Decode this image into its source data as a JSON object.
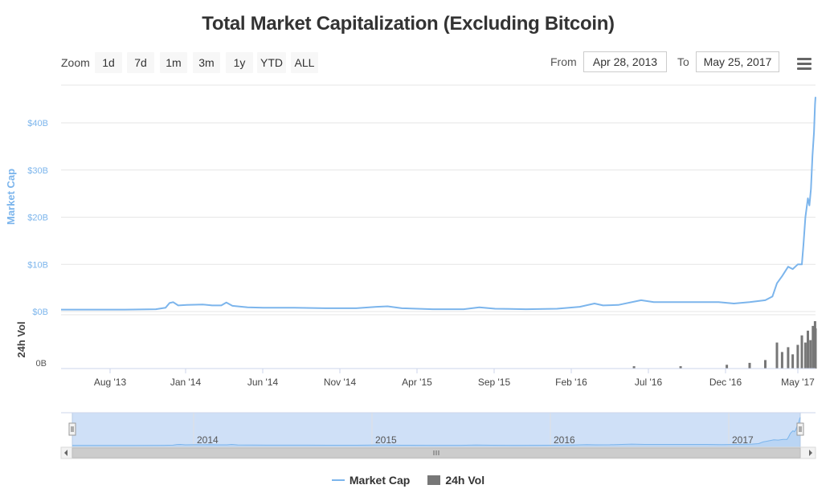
{
  "title": "Total Market Capitalization (Excluding Bitcoin)",
  "toolbar": {
    "zoom_label": "Zoom",
    "zoom_buttons": [
      "1d",
      "7d",
      "1m",
      "3m",
      "1y",
      "YTD",
      "ALL"
    ],
    "from_label": "From",
    "from_value": "Apr 28, 2013",
    "to_label": "To",
    "to_value": "May 25, 2017",
    "menu_icon": "hamburger-menu-icon"
  },
  "colors": {
    "market_cap": "#7cb5ec",
    "volume": "#777777",
    "navigator_fill": "#cfe0f7",
    "grid": "#e6e6e6",
    "axis_label": "#7cb5ec"
  },
  "chart_data": {
    "type": "line",
    "title": "Total Market Capitalization (Excluding Bitcoin)",
    "x_range": [
      "2013-04-28",
      "2017-05-25"
    ],
    "x_ticks": [
      "Aug '13",
      "Jan '14",
      "Jun '14",
      "Nov '14",
      "Apr '15",
      "Sep '15",
      "Feb '16",
      "Jul '16",
      "Dec '16",
      "May '17"
    ],
    "series": [
      {
        "name": "Market Cap",
        "axis_title": "Market Cap",
        "y_ticks": [
          "$0B",
          "$10B",
          "$20B",
          "$30B",
          "$40B"
        ],
        "ylim": [
          0,
          48
        ],
        "unit": "B USD",
        "points": [
          [
            "2013-04-28",
            0.4
          ],
          [
            "2013-07-01",
            0.4
          ],
          [
            "2013-09-01",
            0.4
          ],
          [
            "2013-11-01",
            0.5
          ],
          [
            "2013-11-20",
            0.8
          ],
          [
            "2013-11-28",
            1.8
          ],
          [
            "2013-12-05",
            2.0
          ],
          [
            "2013-12-15",
            1.3
          ],
          [
            "2014-01-01",
            1.4
          ],
          [
            "2014-02-01",
            1.5
          ],
          [
            "2014-02-20",
            1.3
          ],
          [
            "2014-03-10",
            1.3
          ],
          [
            "2014-03-20",
            1.9
          ],
          [
            "2014-04-01",
            1.2
          ],
          [
            "2014-05-01",
            0.9
          ],
          [
            "2014-06-01",
            0.8
          ],
          [
            "2014-08-01",
            0.8
          ],
          [
            "2014-10-01",
            0.7
          ],
          [
            "2014-12-01",
            0.7
          ],
          [
            "2015-01-10",
            1.0
          ],
          [
            "2015-02-01",
            1.1
          ],
          [
            "2015-03-01",
            0.7
          ],
          [
            "2015-05-01",
            0.5
          ],
          [
            "2015-07-01",
            0.5
          ],
          [
            "2015-08-01",
            0.9
          ],
          [
            "2015-09-01",
            0.6
          ],
          [
            "2015-11-01",
            0.5
          ],
          [
            "2016-01-01",
            0.6
          ],
          [
            "2016-02-15",
            1.0
          ],
          [
            "2016-03-15",
            1.7
          ],
          [
            "2016-04-01",
            1.3
          ],
          [
            "2016-05-01",
            1.4
          ],
          [
            "2016-06-15",
            2.4
          ],
          [
            "2016-07-10",
            2.0
          ],
          [
            "2016-08-01",
            2.0
          ],
          [
            "2016-10-01",
            2.0
          ],
          [
            "2016-11-15",
            2.0
          ],
          [
            "2016-12-15",
            1.7
          ],
          [
            "2017-01-15",
            2.0
          ],
          [
            "2017-02-15",
            2.4
          ],
          [
            "2017-03-01",
            3.2
          ],
          [
            "2017-03-10",
            6.0
          ],
          [
            "2017-03-20",
            7.5
          ],
          [
            "2017-04-01",
            9.5
          ],
          [
            "2017-04-10",
            9.0
          ],
          [
            "2017-04-20",
            10.0
          ],
          [
            "2017-04-28",
            10.0
          ],
          [
            "2017-05-01",
            14.0
          ],
          [
            "2017-05-05",
            20.0
          ],
          [
            "2017-05-10",
            24.0
          ],
          [
            "2017-05-13",
            22.5
          ],
          [
            "2017-05-16",
            26.0
          ],
          [
            "2017-05-19",
            33.0
          ],
          [
            "2017-05-22",
            38.0
          ],
          [
            "2017-05-24",
            44.0
          ],
          [
            "2017-05-25",
            45.5
          ]
        ]
      },
      {
        "name": "24h Vol",
        "axis_title": "24h Vol",
        "y_ticks": [
          "0B"
        ],
        "points": [
          [
            "2013-04-28",
            0.0
          ],
          [
            "2016-01-01",
            0.0
          ],
          [
            "2016-06-01",
            0.05
          ],
          [
            "2016-09-01",
            0.05
          ],
          [
            "2016-12-01",
            0.08
          ],
          [
            "2017-01-15",
            0.12
          ],
          [
            "2017-02-15",
            0.18
          ],
          [
            "2017-03-10",
            0.55
          ],
          [
            "2017-03-20",
            0.35
          ],
          [
            "2017-04-01",
            0.45
          ],
          [
            "2017-04-10",
            0.3
          ],
          [
            "2017-04-20",
            0.5
          ],
          [
            "2017-04-28",
            0.7
          ],
          [
            "2017-05-05",
            0.55
          ],
          [
            "2017-05-10",
            0.8
          ],
          [
            "2017-05-15",
            0.6
          ],
          [
            "2017-05-20",
            0.9
          ],
          [
            "2017-05-24",
            1.0
          ],
          [
            "2017-05-25",
            0.85
          ]
        ]
      }
    ],
    "navigator": {
      "year_labels": [
        "2014",
        "2015",
        "2016",
        "2017"
      ]
    },
    "legend": [
      {
        "name": "Market Cap",
        "symbol": "line"
      },
      {
        "name": "24h Vol",
        "symbol": "box"
      }
    ],
    "grid": true,
    "legend_position": "bottom-center"
  }
}
